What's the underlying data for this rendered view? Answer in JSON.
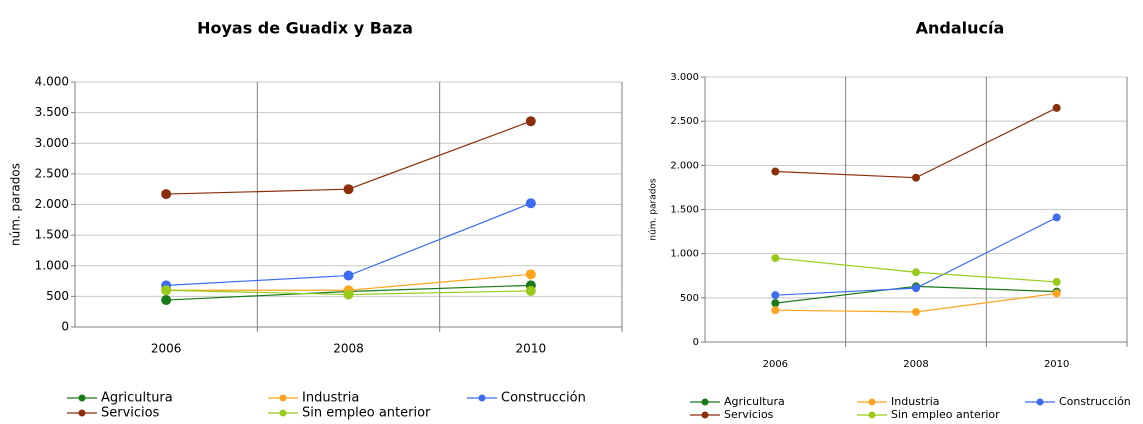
{
  "chart_data": [
    {
      "type": "line",
      "title": "Hoyas de Guadix y Baza",
      "ylabel": "núm. parados",
      "categories": [
        "2006",
        "2008",
        "2010"
      ],
      "series": [
        {
          "name": "Agricultura",
          "color": "#1a7a1a",
          "values": [
            440,
            580,
            680
          ]
        },
        {
          "name": "Industria",
          "color": "#ffa51f",
          "values": [
            600,
            600,
            860
          ]
        },
        {
          "name": "Construcción",
          "color": "#3d6cf0",
          "values": [
            680,
            840,
            2020
          ]
        },
        {
          "name": "Servicios",
          "color": "#8b2f0a",
          "values": [
            2170,
            2250,
            3360
          ]
        },
        {
          "name": "Sin empleo anterior",
          "color": "#99cc1a",
          "values": [
            600,
            530,
            590
          ]
        }
      ],
      "ylim": [
        0,
        4000
      ],
      "yticks": [
        0,
        500,
        {
          "value": 1000,
          "label": "1.000"
        },
        {
          "value": 1500,
          "label": "1.500"
        },
        {
          "value": 2000,
          "label": "2.000"
        },
        {
          "value": 2500,
          "label": "2.500"
        },
        {
          "value": 3000,
          "label": "3.000"
        },
        {
          "value": 3500,
          "label": "3.500"
        },
        {
          "value": 4000,
          "label": "4.000"
        }
      ],
      "grid": true,
      "legend": "bottom"
    },
    {
      "type": "line",
      "title": "Andalucía",
      "ylabel": "núm. parados",
      "categories": [
        "2006",
        "2008",
        "2010"
      ],
      "series": [
        {
          "name": "Agricultura",
          "color": "#1a7a1a",
          "values": [
            440,
            630,
            570
          ]
        },
        {
          "name": "Industria",
          "color": "#ffa51f",
          "values": [
            360,
            340,
            550
          ]
        },
        {
          "name": "Construcción",
          "color": "#3d6cf0",
          "values": [
            530,
            610,
            1410
          ]
        },
        {
          "name": "Servicios",
          "color": "#8b2f0a",
          "values": [
            1930,
            1860,
            2650
          ]
        },
        {
          "name": "Sin empleo anterior",
          "color": "#99cc1a",
          "values": [
            950,
            790,
            680
          ]
        }
      ],
      "ylim": [
        0,
        3000
      ],
      "yticks": [
        0,
        500,
        {
          "value": 1000,
          "label": "1.000"
        },
        {
          "value": 1500,
          "label": "1.500"
        },
        {
          "value": 2000,
          "label": "2.000"
        },
        {
          "value": 2500,
          "label": "2.500"
        },
        {
          "value": 3000,
          "label": "3.000"
        }
      ],
      "grid": true,
      "legend": "bottom"
    }
  ]
}
